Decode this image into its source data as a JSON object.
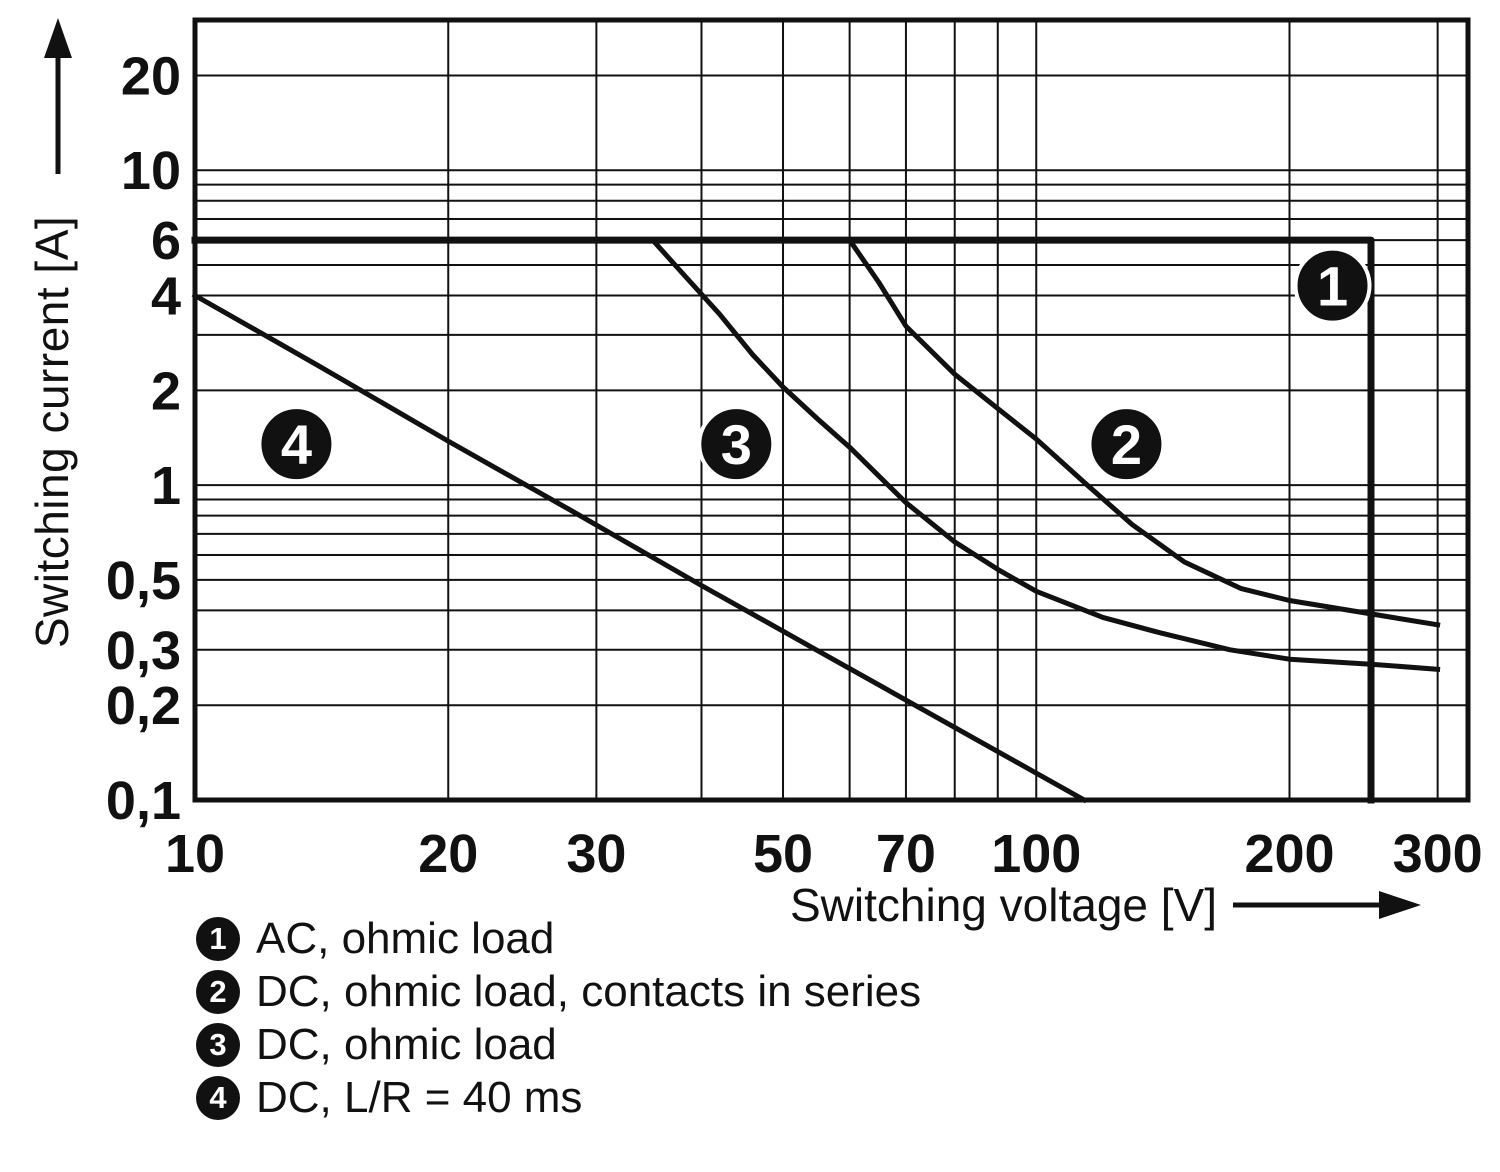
{
  "colors": {
    "background": "#ffffff",
    "line": "#111111",
    "grid": "#111111",
    "marker_bg": "#111111",
    "marker_fg": "#ffffff"
  },
  "chart_data": {
    "type": "line",
    "title": "",
    "xlabel": "Switching voltage [V]",
    "ylabel": "Switching current [A]",
    "x_scale": "log",
    "y_scale": "log",
    "xlim": [
      10,
      326
    ],
    "ylim": [
      0.1,
      30
    ],
    "grid": "on",
    "legend_position": "bottom-left",
    "x_ticks": [
      {
        "v": 10,
        "label": "10"
      },
      {
        "v": 20,
        "label": "20"
      },
      {
        "v": 30,
        "label": "30"
      },
      {
        "v": 50,
        "label": "50"
      },
      {
        "v": 70,
        "label": "70"
      },
      {
        "v": 100,
        "label": "100"
      },
      {
        "v": 200,
        "label": "200"
      },
      {
        "v": 300,
        "label": "300"
      }
    ],
    "y_ticks": [
      {
        "v": 20,
        "label": "20"
      },
      {
        "v": 10,
        "label": "10"
      },
      {
        "v": 6,
        "label": "6"
      },
      {
        "v": 4,
        "label": "4"
      },
      {
        "v": 2,
        "label": "2"
      },
      {
        "v": 1,
        "label": "1"
      },
      {
        "v": 0.5,
        "label": "0,5"
      },
      {
        "v": 0.3,
        "label": "0,3"
      },
      {
        "v": 0.2,
        "label": "0,2"
      },
      {
        "v": 0.1,
        "label": "0,1"
      }
    ],
    "x_gridlines": [
      10,
      20,
      30,
      40,
      50,
      60,
      70,
      80,
      90,
      100,
      200,
      300
    ],
    "y_gridlines": [
      0.1,
      0.2,
      0.3,
      0.4,
      0.5,
      0.6,
      0.7,
      0.8,
      0.9,
      1,
      2,
      3,
      4,
      5,
      6,
      7,
      8,
      9,
      10,
      20
    ],
    "series": [
      {
        "marker": "1",
        "name": "AC, ohmic load",
        "width": 7,
        "points": [
          [
            10,
            6
          ],
          [
            250,
            6
          ],
          [
            250,
            0.1
          ]
        ]
      },
      {
        "marker": "2",
        "name": "DC, ohmic load, contacts in series",
        "width": 5,
        "points": [
          [
            60,
            6
          ],
          [
            65,
            4.4
          ],
          [
            70,
            3.2
          ],
          [
            80,
            2.25
          ],
          [
            90,
            1.75
          ],
          [
            100,
            1.4
          ],
          [
            115,
            1.0
          ],
          [
            130,
            0.75
          ],
          [
            150,
            0.57
          ],
          [
            175,
            0.47
          ],
          [
            200,
            0.43
          ],
          [
            250,
            0.39
          ],
          [
            300,
            0.36
          ]
        ]
      },
      {
        "marker": "3",
        "name": "DC, ohmic load",
        "width": 5,
        "points": [
          [
            35,
            6
          ],
          [
            38,
            4.7
          ],
          [
            42,
            3.5
          ],
          [
            46,
            2.6
          ],
          [
            50,
            2.05
          ],
          [
            55,
            1.62
          ],
          [
            60,
            1.32
          ],
          [
            70,
            0.88
          ],
          [
            80,
            0.66
          ],
          [
            90,
            0.54
          ],
          [
            100,
            0.46
          ],
          [
            120,
            0.38
          ],
          [
            140,
            0.34
          ],
          [
            170,
            0.3
          ],
          [
            200,
            0.28
          ],
          [
            250,
            0.27
          ],
          [
            300,
            0.26
          ]
        ]
      },
      {
        "marker": "4",
        "name": "DC, L/R = 40 ms",
        "width": 5,
        "points": [
          [
            10,
            4
          ],
          [
            14,
            2.4
          ],
          [
            20,
            1.38
          ],
          [
            28,
            0.83
          ],
          [
            40,
            0.48
          ],
          [
            56,
            0.29
          ],
          [
            80,
            0.17
          ],
          [
            114,
            0.1
          ]
        ]
      }
    ],
    "callouts": [
      {
        "label": "1",
        "x": 225,
        "y": 4.3
      },
      {
        "label": "2",
        "x": 128,
        "y": 1.35
      },
      {
        "label": "3",
        "x": 44,
        "y": 1.35
      },
      {
        "label": "4",
        "x": 13.2,
        "y": 1.35
      }
    ],
    "legend": [
      {
        "marker": "1",
        "label": "AC, ohmic load"
      },
      {
        "marker": "2",
        "label": "DC, ohmic load, contacts in series"
      },
      {
        "marker": "3",
        "label": "DC, ohmic load"
      },
      {
        "marker": "4",
        "label": "DC, L/R = 40 ms"
      }
    ]
  }
}
